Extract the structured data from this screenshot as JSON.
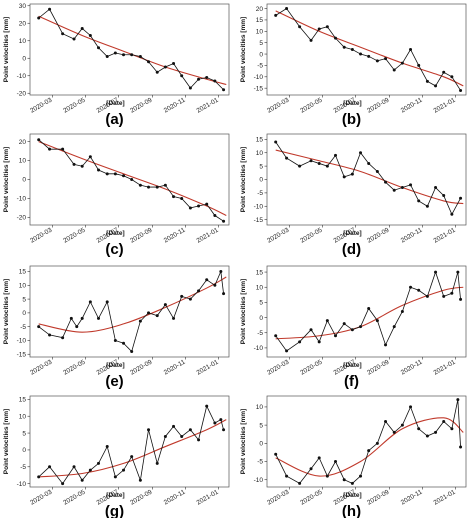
{
  "figure": {
    "panel_labels": [
      "(a)",
      "(b)",
      "(c)",
      "(d)",
      "(e)",
      "(f)",
      "(g)",
      "(h)"
    ],
    "series_color": "#111111",
    "trend_color": "#c0392b"
  },
  "chart_data": [
    {
      "type": "line",
      "panel": "(a)",
      "xlabel": "[Date]",
      "ylabel": "Point velocities [mm]",
      "x_ticks": [
        "2020-03",
        "2020-05",
        "2020-07",
        "2020-09",
        "2020-11",
        "2021-01"
      ],
      "xlim": [
        "2020-01-20",
        "2021-01-20"
      ],
      "ylim": [
        -21,
        31
      ],
      "y_ticks": [
        -20,
        -10,
        0,
        10,
        20,
        30
      ],
      "series": [
        {
          "x": [
            "2020-02-05",
            "2020-02-25",
            "2020-03-20",
            "2020-04-10",
            "2020-04-25",
            "2020-05-10",
            "2020-05-25",
            "2020-06-10",
            "2020-06-25",
            "2020-07-10",
            "2020-07-25",
            "2020-08-10",
            "2020-08-25",
            "2020-09-10",
            "2020-09-25",
            "2020-10-10",
            "2020-10-25",
            "2020-11-10",
            "2020-11-25",
            "2020-12-10",
            "2020-12-25",
            "2021-01-10"
          ],
          "y": [
            23,
            28,
            14,
            11,
            17,
            13,
            6,
            1,
            3,
            2,
            2,
            1,
            -2,
            -8,
            -5,
            -3,
            -10,
            -17,
            -12,
            -11,
            -13,
            -18
          ]
        }
      ],
      "trend": {
        "x": [
          "2020-02-05",
          "2020-04-25",
          "2020-07-10",
          "2020-09-25",
          "2020-12-10",
          "2021-01-15"
        ],
        "y": [
          24,
          13,
          4,
          -5,
          -12,
          -15
        ]
      }
    },
    {
      "type": "line",
      "panel": "(b)",
      "xlabel": "[Date]",
      "ylabel": "Point velocities [mm]",
      "x_ticks": [
        "2020-03",
        "2020-05",
        "2020-07",
        "2020-09",
        "2020-11",
        "2021-01"
      ],
      "xlim": [
        "2020-01-20",
        "2021-01-20"
      ],
      "ylim": [
        -18,
        22
      ],
      "y_ticks": [
        -15,
        -10,
        -5,
        0,
        5,
        10,
        15,
        20
      ],
      "series": [
        {
          "x": [
            "2020-02-05",
            "2020-02-25",
            "2020-03-20",
            "2020-04-10",
            "2020-04-25",
            "2020-05-10",
            "2020-05-25",
            "2020-06-10",
            "2020-06-25",
            "2020-07-10",
            "2020-07-25",
            "2020-08-10",
            "2020-08-25",
            "2020-09-10",
            "2020-09-25",
            "2020-10-10",
            "2020-10-25",
            "2020-11-10",
            "2020-11-25",
            "2020-12-10",
            "2020-12-25",
            "2021-01-10"
          ],
          "y": [
            17,
            20,
            12,
            6,
            11,
            12,
            7,
            3,
            2,
            0,
            -1,
            -3,
            -2,
            -7,
            -4,
            2,
            -5,
            -12,
            -14,
            -8,
            -10,
            -16
          ]
        }
      ],
      "trend": {
        "x": [
          "2020-02-05",
          "2020-04-25",
          "2020-07-10",
          "2020-09-25",
          "2020-12-10",
          "2021-01-15"
        ],
        "y": [
          19,
          10,
          3,
          -4,
          -10,
          -14
        ]
      }
    },
    {
      "type": "line",
      "panel": "(c)",
      "xlabel": "[Date]",
      "ylabel": "Point velocities [mm]",
      "x_ticks": [
        "2020-03",
        "2020-05",
        "2020-07",
        "2020-09",
        "2020-11",
        "2021-01"
      ],
      "xlim": [
        "2020-01-20",
        "2021-01-20"
      ],
      "ylim": [
        -24,
        24
      ],
      "y_ticks": [
        -20,
        -10,
        0,
        10,
        20
      ],
      "series": [
        {
          "x": [
            "2020-02-05",
            "2020-02-25",
            "2020-03-20",
            "2020-04-10",
            "2020-04-25",
            "2020-05-10",
            "2020-05-25",
            "2020-06-10",
            "2020-06-25",
            "2020-07-10",
            "2020-07-25",
            "2020-08-10",
            "2020-08-25",
            "2020-09-10",
            "2020-09-25",
            "2020-10-10",
            "2020-10-25",
            "2020-11-10",
            "2020-11-25",
            "2020-12-10",
            "2020-12-25",
            "2021-01-10"
          ],
          "y": [
            21,
            16,
            16,
            8,
            7,
            12,
            5,
            3,
            3,
            2,
            0,
            -3,
            -4,
            -4,
            -3,
            -9,
            -10,
            -15,
            -14,
            -13,
            -19,
            -22
          ]
        }
      ],
      "trend": {
        "x": [
          "2020-02-05",
          "2020-04-25",
          "2020-07-10",
          "2020-09-25",
          "2020-12-10",
          "2021-01-15"
        ],
        "y": [
          20,
          11,
          3,
          -5,
          -14,
          -19
        ]
      }
    },
    {
      "type": "line",
      "panel": "(d)",
      "xlabel": "[Date]",
      "ylabel": "Point velocities [mm]",
      "x_ticks": [
        "2020-03",
        "2020-05",
        "2020-07",
        "2020-09",
        "2020-11",
        "2021-01"
      ],
      "xlim": [
        "2020-01-20",
        "2021-01-20"
      ],
      "ylim": [
        -17,
        17
      ],
      "y_ticks": [
        -15,
        -10,
        -5,
        0,
        5,
        10,
        15
      ],
      "series": [
        {
          "x": [
            "2020-02-05",
            "2020-02-25",
            "2020-03-20",
            "2020-04-10",
            "2020-04-25",
            "2020-05-10",
            "2020-05-25",
            "2020-06-10",
            "2020-06-25",
            "2020-07-10",
            "2020-07-25",
            "2020-08-10",
            "2020-08-25",
            "2020-09-10",
            "2020-09-25",
            "2020-10-10",
            "2020-10-25",
            "2020-11-10",
            "2020-11-25",
            "2020-12-10",
            "2020-12-25",
            "2021-01-10"
          ],
          "y": [
            14,
            8,
            5,
            7,
            6,
            5,
            9,
            1,
            2,
            10,
            6,
            3,
            -1,
            -4,
            -3,
            -2,
            -8,
            -10,
            -3,
            -6,
            -13,
            -7
          ]
        }
      ],
      "trend": {
        "x": [
          "2020-02-05",
          "2020-04-25",
          "2020-07-10",
          "2020-09-25",
          "2020-12-10",
          "2021-01-15"
        ],
        "y": [
          11,
          7,
          3,
          -3,
          -8,
          -9
        ]
      }
    },
    {
      "type": "line",
      "panel": "(e)",
      "xlabel": "[Date]",
      "ylabel": "Point velocities [mm]",
      "x_ticks": [
        "2020-03",
        "2020-05",
        "2020-07",
        "2020-09",
        "2020-11",
        "2021-01"
      ],
      "xlim": [
        "2020-01-20",
        "2021-01-20"
      ],
      "ylim": [
        -16,
        17
      ],
      "y_ticks": [
        -15,
        -10,
        -5,
        0,
        5,
        10,
        15
      ],
      "series": [
        {
          "x": [
            "2020-02-05",
            "2020-02-25",
            "2020-03-20",
            "2020-04-05",
            "2020-04-15",
            "2020-04-25",
            "2020-05-10",
            "2020-05-25",
            "2020-06-10",
            "2020-06-25",
            "2020-07-10",
            "2020-07-25",
            "2020-08-10",
            "2020-08-25",
            "2020-09-10",
            "2020-09-25",
            "2020-10-10",
            "2020-10-25",
            "2020-11-10",
            "2020-11-25",
            "2020-12-10",
            "2020-12-25",
            "2021-01-05",
            "2021-01-10"
          ],
          "y": [
            -5,
            -8,
            -9,
            -2,
            -5,
            -2,
            4,
            -2,
            4,
            -10,
            -11,
            -14,
            -3,
            0,
            -1,
            3,
            -2,
            6,
            5,
            8,
            12,
            10,
            15,
            7
          ]
        }
      ],
      "trend": {
        "x": [
          "2020-02-05",
          "2020-04-25",
          "2020-07-10",
          "2020-09-25",
          "2020-12-10",
          "2021-01-15"
        ],
        "y": [
          -4,
          -7,
          -4,
          2,
          9,
          13
        ]
      }
    },
    {
      "type": "line",
      "panel": "(f)",
      "xlabel": "[Date]",
      "ylabel": "Point velocities [mm]",
      "x_ticks": [
        "2020-03",
        "2020-05",
        "2020-07",
        "2020-09",
        "2020-11",
        "2021-01"
      ],
      "xlim": [
        "2020-01-20",
        "2021-01-20"
      ],
      "ylim": [
        -13,
        17
      ],
      "y_ticks": [
        -10,
        -5,
        0,
        5,
        10,
        15
      ],
      "series": [
        {
          "x": [
            "2020-02-05",
            "2020-02-25",
            "2020-03-20",
            "2020-04-10",
            "2020-04-25",
            "2020-05-10",
            "2020-05-25",
            "2020-06-10",
            "2020-06-25",
            "2020-07-10",
            "2020-07-25",
            "2020-08-10",
            "2020-08-25",
            "2020-09-10",
            "2020-09-25",
            "2020-10-10",
            "2020-10-25",
            "2020-11-10",
            "2020-11-25",
            "2020-12-10",
            "2020-12-25",
            "2021-01-05",
            "2021-01-10"
          ],
          "y": [
            -6,
            -11,
            -8,
            -4,
            -8,
            -1,
            -6,
            -2,
            -4,
            -3,
            3,
            -1,
            -9,
            -3,
            2,
            10,
            9,
            7,
            15,
            7,
            8,
            15,
            6
          ]
        }
      ],
      "trend": {
        "x": [
          "2020-02-05",
          "2020-04-25",
          "2020-07-10",
          "2020-09-25",
          "2020-12-10",
          "2021-01-15"
        ],
        "y": [
          -7,
          -6,
          -3,
          4,
          9,
          10
        ]
      }
    },
    {
      "type": "line",
      "panel": "(g)",
      "xlabel": "[Date]",
      "ylabel": "Point velocities [mm]",
      "x_ticks": [
        "2020-03",
        "2020-05",
        "2020-07",
        "2020-09",
        "2020-11",
        "2021-01"
      ],
      "xlim": [
        "2020-01-20",
        "2021-01-20"
      ],
      "ylim": [
        -11,
        16
      ],
      "y_ticks": [
        -10,
        -5,
        0,
        5,
        10,
        15
      ],
      "series": [
        {
          "x": [
            "2020-02-05",
            "2020-02-25",
            "2020-03-20",
            "2020-04-10",
            "2020-04-25",
            "2020-05-10",
            "2020-05-25",
            "2020-06-10",
            "2020-06-25",
            "2020-07-10",
            "2020-07-25",
            "2020-08-10",
            "2020-08-25",
            "2020-09-10",
            "2020-09-25",
            "2020-10-10",
            "2020-10-25",
            "2020-11-10",
            "2020-11-25",
            "2020-12-10",
            "2020-12-25",
            "2021-01-05",
            "2021-01-10"
          ],
          "y": [
            -8,
            -5,
            -10,
            -5,
            -9,
            -6,
            -4,
            1,
            -8,
            -6,
            -2,
            -9,
            6,
            -4,
            4,
            7,
            4,
            6,
            3,
            13,
            8,
            9,
            6
          ]
        }
      ],
      "trend": {
        "x": [
          "2020-02-05",
          "2020-04-25",
          "2020-07-10",
          "2020-09-25",
          "2020-12-10",
          "2021-01-15"
        ],
        "y": [
          -8,
          -7,
          -4,
          1,
          6,
          9
        ]
      }
    },
    {
      "type": "line",
      "panel": "(h)",
      "xlabel": "[Date]",
      "ylabel": "Point velocities [mm]",
      "x_ticks": [
        "2020-03",
        "2020-05",
        "2020-07",
        "2020-09",
        "2020-11",
        "2021-01"
      ],
      "xlim": [
        "2020-01-20",
        "2021-01-20"
      ],
      "ylim": [
        -12,
        13
      ],
      "y_ticks": [
        -10,
        -5,
        0,
        5,
        10
      ],
      "series": [
        {
          "x": [
            "2020-02-05",
            "2020-02-25",
            "2020-03-20",
            "2020-04-10",
            "2020-04-25",
            "2020-05-10",
            "2020-05-25",
            "2020-06-10",
            "2020-06-25",
            "2020-07-10",
            "2020-07-25",
            "2020-08-10",
            "2020-08-25",
            "2020-09-10",
            "2020-09-25",
            "2020-10-10",
            "2020-10-25",
            "2020-11-10",
            "2020-11-25",
            "2020-12-10",
            "2020-12-25",
            "2021-01-05",
            "2021-01-10"
          ],
          "y": [
            -3,
            -9,
            -11,
            -7,
            -4,
            -9,
            -5,
            -10,
            -11,
            -9,
            -2,
            0,
            6,
            3,
            5,
            10,
            4,
            2,
            3,
            6,
            4,
            12,
            -1
          ]
        }
      ],
      "trend": {
        "x": [
          "2020-02-05",
          "2020-04-25",
          "2020-07-10",
          "2020-09-25",
          "2020-12-10",
          "2021-01-15"
        ],
        "y": [
          -4,
          -9,
          -5,
          4,
          7,
          3
        ]
      }
    }
  ]
}
